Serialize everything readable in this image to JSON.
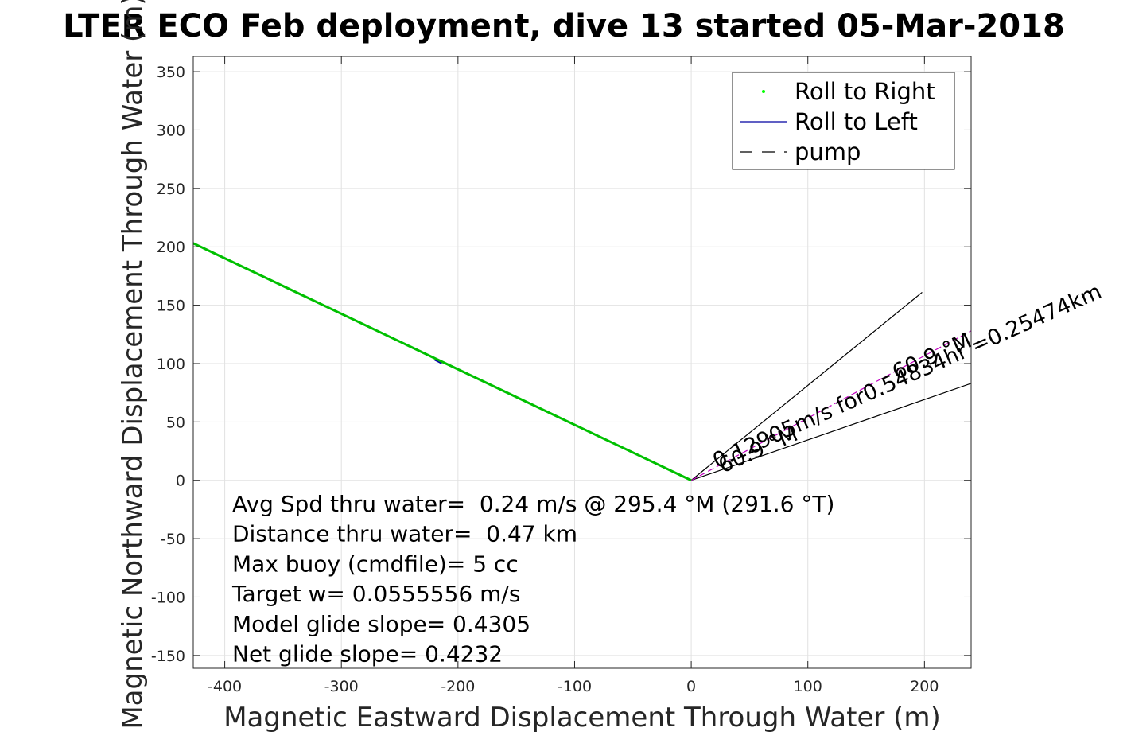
{
  "chart_data": {
    "type": "line",
    "title": "LTER ECO Feb deployment, dive 13 started 05-Mar-2018",
    "xlabel": "Magnetic Eastward Displacement Through Water (m)",
    "ylabel": "Magnetic Northward Displacement Through Water (m)",
    "xlim": [
      -427,
      240
    ],
    "ylim": [
      -161,
      363
    ],
    "xticks": [
      -400,
      -300,
      -200,
      -100,
      0,
      100,
      200
    ],
    "yticks": [
      -150,
      -100,
      -50,
      0,
      50,
      100,
      150,
      200,
      250,
      300,
      350
    ],
    "grid": true,
    "legend": {
      "position": "top-right",
      "entries": [
        {
          "label": "Roll to Right",
          "color": "#00ff00",
          "style": "dot"
        },
        {
          "label": "Roll to Left",
          "color": "#0000a0",
          "style": "solid"
        },
        {
          "label": "pump",
          "color": "#000000",
          "style": "dashed"
        }
      ]
    },
    "series": [
      {
        "name": "Roll to Right",
        "color": "#00c000",
        "x": [
          0,
          -427
        ],
        "y": [
          0,
          203
        ]
      },
      {
        "name": "Roll to Left",
        "color": "#0000a0",
        "x": [
          -220,
          -214
        ],
        "y": [
          103,
          100
        ]
      }
    ],
    "cone": {
      "color": "#000000",
      "lines": [
        {
          "x": [
            0,
            198
          ],
          "y": [
            0,
            161
          ]
        },
        {
          "x": [
            0,
            240
          ],
          "y": [
            0,
            83
          ]
        }
      ]
    },
    "current_vector": {
      "color": "#c000c0",
      "x": [
        0,
        240
      ],
      "y": [
        0,
        128
      ]
    },
    "annotations": [
      {
        "text": "0.12905m/s for0.54834hr =0.25474km",
        "x": 22,
        "y": 10,
        "angle": 24
      },
      {
        "text": "60.9 °M",
        "x": 27,
        "y": 6,
        "angle": 24
      },
      {
        "text": "60.9 °M",
        "x": 176,
        "y": 86,
        "angle": 24
      }
    ],
    "stats": [
      "Avg Spd thru water=  0.24 m/s @ 295.4 °M (291.6 °T)",
      "Distance thru water=  0.47 km",
      "Max buoy (cmdfile)= 5 cc",
      "Target w= 0.0555556 m/s",
      "Model glide slope= 0.4305",
      "Net glide slope= 0.4232"
    ]
  }
}
